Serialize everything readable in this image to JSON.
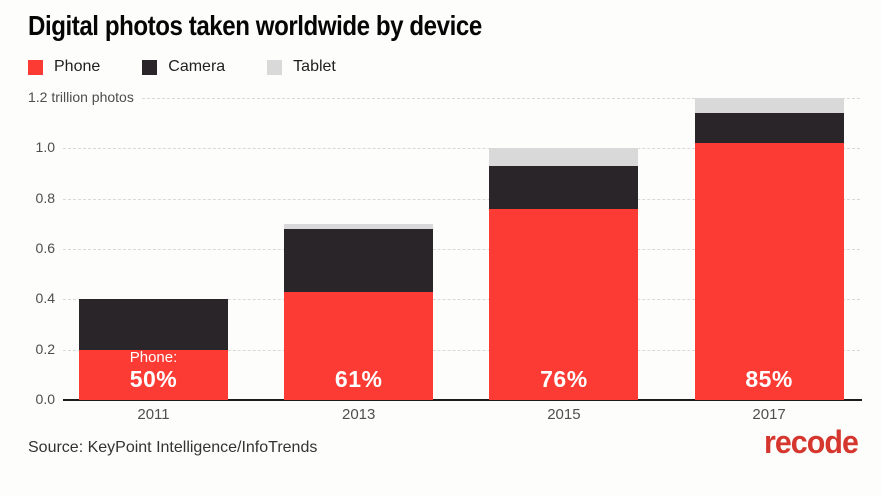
{
  "title": "Digital photos taken worldwide by device",
  "legend": [
    {
      "label": "Phone",
      "color": "#fb3b34"
    },
    {
      "label": "Camera",
      "color": "#2a2529"
    },
    {
      "label": "Tablet",
      "color": "#d9d9d9"
    }
  ],
  "chart_data": {
    "type": "bar",
    "stacked": true,
    "title": "Digital photos taken worldwide by device",
    "categories": [
      "2011",
      "2013",
      "2015",
      "2017"
    ],
    "series": [
      {
        "name": "Phone",
        "color": "#fb3b34",
        "values": [
          0.2,
          0.43,
          0.76,
          1.02
        ]
      },
      {
        "name": "Camera",
        "color": "#2a2529",
        "values": [
          0.2,
          0.25,
          0.17,
          0.12
        ]
      },
      {
        "name": "Tablet",
        "color": "#d9d9d9",
        "values": [
          0.0,
          0.02,
          0.07,
          0.06
        ]
      }
    ],
    "totals": [
      0.4,
      0.7,
      1.0,
      1.2
    ],
    "bar_labels": [
      {
        "prefix": "Phone:",
        "value": "50%"
      },
      {
        "value": "61%"
      },
      {
        "value": "76%"
      },
      {
        "value": "85%"
      }
    ],
    "yticks": [
      {
        "value": 0.0,
        "label": "0.0"
      },
      {
        "value": 0.2,
        "label": "0.2"
      },
      {
        "value": 0.4,
        "label": "0.4"
      },
      {
        "value": 0.6,
        "label": "0.6"
      },
      {
        "value": 0.8,
        "label": "0.8"
      },
      {
        "value": 1.0,
        "label": "1.0"
      },
      {
        "value": 1.2,
        "label": "1.2 trillion photos"
      }
    ],
    "ylim": [
      0,
      1.2
    ],
    "xlabel": "",
    "ylabel": "trillion photos",
    "grid": "horizontal dashed",
    "legend_position": "top-left"
  },
  "footer": {
    "source": "Source: KeyPoint Intelligence/InfoTrends",
    "logo": "recode",
    "logo_color": "#d5372e"
  }
}
